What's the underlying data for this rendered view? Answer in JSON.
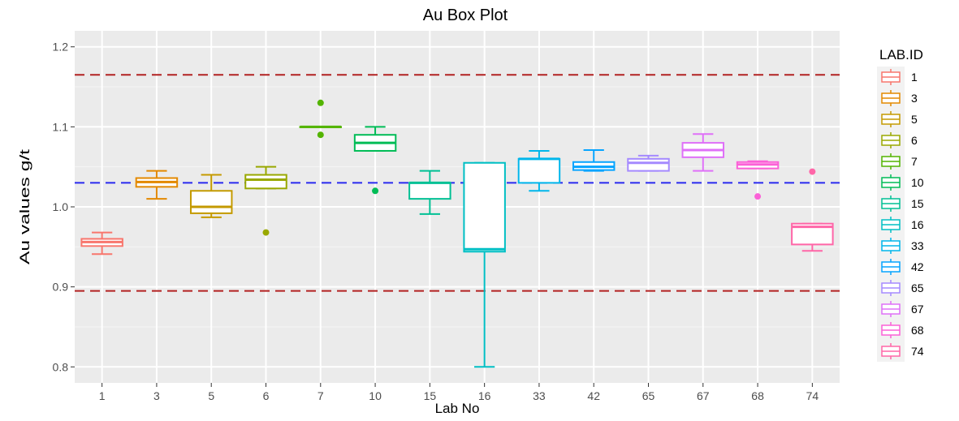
{
  "chart_data": {
    "type": "box",
    "title": "Au Box Plot",
    "xlabel": "Lab No",
    "ylabel": "Au values g/t",
    "ylim": [
      0.78,
      1.22
    ],
    "yticks": [
      0.8,
      0.9,
      1.0,
      1.1,
      1.2
    ],
    "ytick_labels": [
      "0.8",
      "0.9",
      "1.0",
      "1.1",
      "1.2"
    ],
    "categories": [
      "1",
      "3",
      "5",
      "6",
      "7",
      "10",
      "15",
      "16",
      "33",
      "42",
      "65",
      "67",
      "68",
      "74"
    ],
    "legend": {
      "title": "LAB.ID",
      "position": "right"
    },
    "grid": true,
    "reference_lines": [
      {
        "y": 1.165,
        "color": "#b22222",
        "style": "dashed"
      },
      {
        "y": 1.03,
        "color": "#2a2af0",
        "style": "dashed"
      },
      {
        "y": 0.895,
        "color": "#b22222",
        "style": "dashed"
      }
    ],
    "boxes": [
      {
        "lab": "1",
        "color": "#F8766D",
        "min": 0.941,
        "q1": 0.951,
        "median": 0.956,
        "q3": 0.96,
        "max": 0.968,
        "outliers": []
      },
      {
        "lab": "3",
        "color": "#E38900",
        "min": 1.01,
        "q1": 1.025,
        "median": 1.031,
        "q3": 1.036,
        "max": 1.045,
        "outliers": []
      },
      {
        "lab": "5",
        "color": "#C49A00",
        "min": 0.987,
        "q1": 0.992,
        "median": 1.0,
        "q3": 1.02,
        "max": 1.04,
        "outliers": []
      },
      {
        "lab": "6",
        "color": "#99A800",
        "min": 1.023,
        "q1": 1.023,
        "median": 1.034,
        "q3": 1.04,
        "max": 1.05,
        "outliers": [
          0.968
        ]
      },
      {
        "lab": "7",
        "color": "#53B400",
        "min": 1.1,
        "q1": 1.1,
        "median": 1.1,
        "q3": 1.1,
        "max": 1.1,
        "outliers": [
          1.13,
          1.09
        ]
      },
      {
        "lab": "10",
        "color": "#00BC56",
        "min": 1.07,
        "q1": 1.07,
        "median": 1.08,
        "q3": 1.09,
        "max": 1.1,
        "outliers": [
          1.02
        ]
      },
      {
        "lab": "15",
        "color": "#00C094",
        "min": 0.991,
        "q1": 1.01,
        "median": 1.03,
        "q3": 1.03,
        "max": 1.045,
        "outliers": []
      },
      {
        "lab": "16",
        "color": "#00BFC4",
        "min": 0.8,
        "q1": 0.944,
        "median": 0.947,
        "q3": 1.055,
        "max": 1.055,
        "outliers": []
      },
      {
        "lab": "33",
        "color": "#00B6EB",
        "min": 1.02,
        "q1": 1.03,
        "median": 1.06,
        "q3": 1.06,
        "max": 1.07,
        "outliers": []
      },
      {
        "lab": "42",
        "color": "#06A4FF",
        "min": 1.045,
        "q1": 1.046,
        "median": 1.05,
        "q3": 1.056,
        "max": 1.071,
        "outliers": []
      },
      {
        "lab": "65",
        "color": "#A58AFF",
        "min": 1.045,
        "q1": 1.045,
        "median": 1.055,
        "q3": 1.06,
        "max": 1.064,
        "outliers": []
      },
      {
        "lab": "67",
        "color": "#DF70F8",
        "min": 1.045,
        "q1": 1.062,
        "median": 1.071,
        "q3": 1.08,
        "max": 1.091,
        "outliers": []
      },
      {
        "lab": "68",
        "color": "#FB61D7",
        "min": 1.048,
        "q1": 1.048,
        "median": 1.053,
        "q3": 1.056,
        "max": 1.057,
        "outliers": [
          1.013
        ]
      },
      {
        "lab": "74",
        "color": "#FF66A8",
        "min": 0.945,
        "q1": 0.953,
        "median": 0.975,
        "q3": 0.979,
        "max": 0.979,
        "outliers": [
          1.044
        ]
      }
    ]
  }
}
